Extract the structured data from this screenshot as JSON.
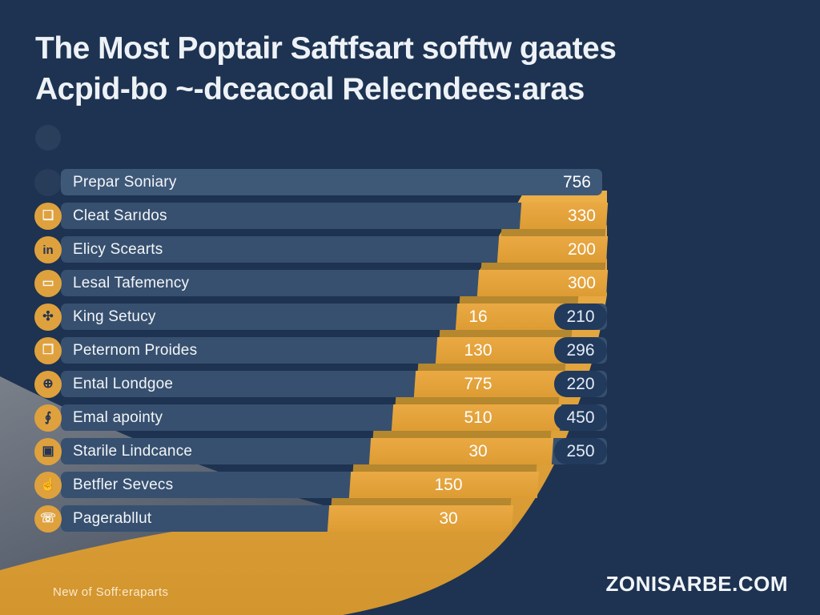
{
  "title": {
    "line1": "The Most Poptair Saftfsart sofftw gaates",
    "line2": "Acpid-bo ~-dceacoal Relecndees:aras"
  },
  "footer": {
    "left": "New of Soff:eraparts",
    "right": "ZONISARBE.COM"
  },
  "colors": {
    "background": "#1d3351",
    "bar": "#37506f",
    "bar_first": "#3e5878",
    "orange": "#e2a33c",
    "orange_dark": "#b5872e",
    "pill": "#223a5c",
    "grey_swoosh": "#6b7280",
    "text": "#eef2f7"
  },
  "chart_data": {
    "type": "bar",
    "title": "The Most Poptair Saftfsart sofftw gaates Acpid-bo ~-dceacoal Relecndees:aras",
    "grid": false,
    "legend_position": "none",
    "categories": [
      "Prepar Soniary",
      "Cleat Sarıdos",
      "Elicy Scearts",
      "Lesal Tafemency",
      "King Setucy",
      "Peternom Proides",
      "Ental Londgoe",
      "Emal apointy",
      "Starile Lindcance",
      "Betfler Sevecs",
      "Pagerabllut"
    ],
    "series": [
      {
        "name": "inner_value",
        "values": [
          null,
          null,
          null,
          null,
          16,
          130,
          775,
          510,
          30,
          150,
          30
        ]
      },
      {
        "name": "right_value",
        "values": [
          756,
          330,
          200,
          300,
          210,
          296,
          220,
          450,
          250,
          null,
          null
        ]
      }
    ],
    "rows": [
      {
        "label": "Prepar Soniary",
        "icon": "blank-icon",
        "glyph": "",
        "glyph_tone": "none",
        "value_inner": null,
        "value_right": "756",
        "right_style": "on-bar",
        "bar_start": 76,
        "bar_end": 752,
        "orange_start": null,
        "orange_end": null
      },
      {
        "label": "Cleat Sarıdos",
        "icon": "document-icon",
        "glyph": "❏",
        "glyph_tone": "light",
        "value_inner": null,
        "value_right": "330",
        "right_style": "on-orange",
        "bar_start": 76,
        "bar_end": 758,
        "orange_start": 650,
        "orange_end": 758
      },
      {
        "label": "Elicy Scearts",
        "icon": "in-badge-icon",
        "glyph": "in",
        "glyph_tone": "dark",
        "value_inner": null,
        "value_right": "200",
        "right_style": "on-orange",
        "bar_start": 76,
        "bar_end": 758,
        "orange_start": 622,
        "orange_end": 758
      },
      {
        "label": "Lesal Tafemency",
        "icon": "monitor-icon",
        "glyph": "▭",
        "glyph_tone": "light",
        "value_inner": null,
        "value_right": "300",
        "right_style": "on-orange",
        "bar_start": 76,
        "bar_end": 758,
        "orange_start": 597,
        "orange_end": 758
      },
      {
        "label": "King Setucy",
        "icon": "letters-icon",
        "glyph": "✣",
        "glyph_tone": "dark",
        "value_inner": "16",
        "value_right": "210",
        "right_style": "pill",
        "bar_start": 76,
        "bar_end": 758,
        "orange_start": 570,
        "orange_end": 724
      },
      {
        "label": "Peternom Proides",
        "icon": "news-icon",
        "glyph": "❐",
        "glyph_tone": "light",
        "value_inner": "130",
        "value_right": "296",
        "right_style": "pill",
        "bar_start": 76,
        "bar_end": 758,
        "orange_start": 545,
        "orange_end": 716
      },
      {
        "label": "Ental Londgoe",
        "icon": "globe-icon",
        "glyph": "⊕",
        "glyph_tone": "dark",
        "value_inner": "775",
        "value_right": "220",
        "right_style": "pill",
        "bar_start": 76,
        "bar_end": 758,
        "orange_start": 518,
        "orange_end": 708
      },
      {
        "label": "Emal apointy",
        "icon": "microphone-icon",
        "glyph": "∮",
        "glyph_tone": "dark",
        "value_inner": "510",
        "value_right": "450",
        "right_style": "pill",
        "bar_start": 76,
        "bar_end": 758,
        "orange_start": 490,
        "orange_end": 700
      },
      {
        "label": "Starile Lindcance",
        "icon": "database-icon",
        "glyph": "▣",
        "glyph_tone": "dark",
        "value_inner": "30",
        "value_right": "250",
        "right_style": "pill",
        "bar_start": 76,
        "bar_end": 758,
        "orange_start": 462,
        "orange_end": 690
      },
      {
        "label": "Betfler Sevecs",
        "icon": "thumb-icon",
        "glyph": "☝",
        "glyph_tone": "dark",
        "value_inner": "150",
        "value_right": null,
        "right_style": null,
        "bar_start": 76,
        "bar_end": 445,
        "orange_start": 437,
        "orange_end": 672
      },
      {
        "label": "Pagerabllut",
        "icon": "phone-icon",
        "glyph": "☏",
        "glyph_tone": "light",
        "value_inner": "30",
        "value_right": null,
        "right_style": null,
        "bar_start": 76,
        "bar_end": 418,
        "orange_start": 410,
        "orange_end": 640
      }
    ]
  }
}
